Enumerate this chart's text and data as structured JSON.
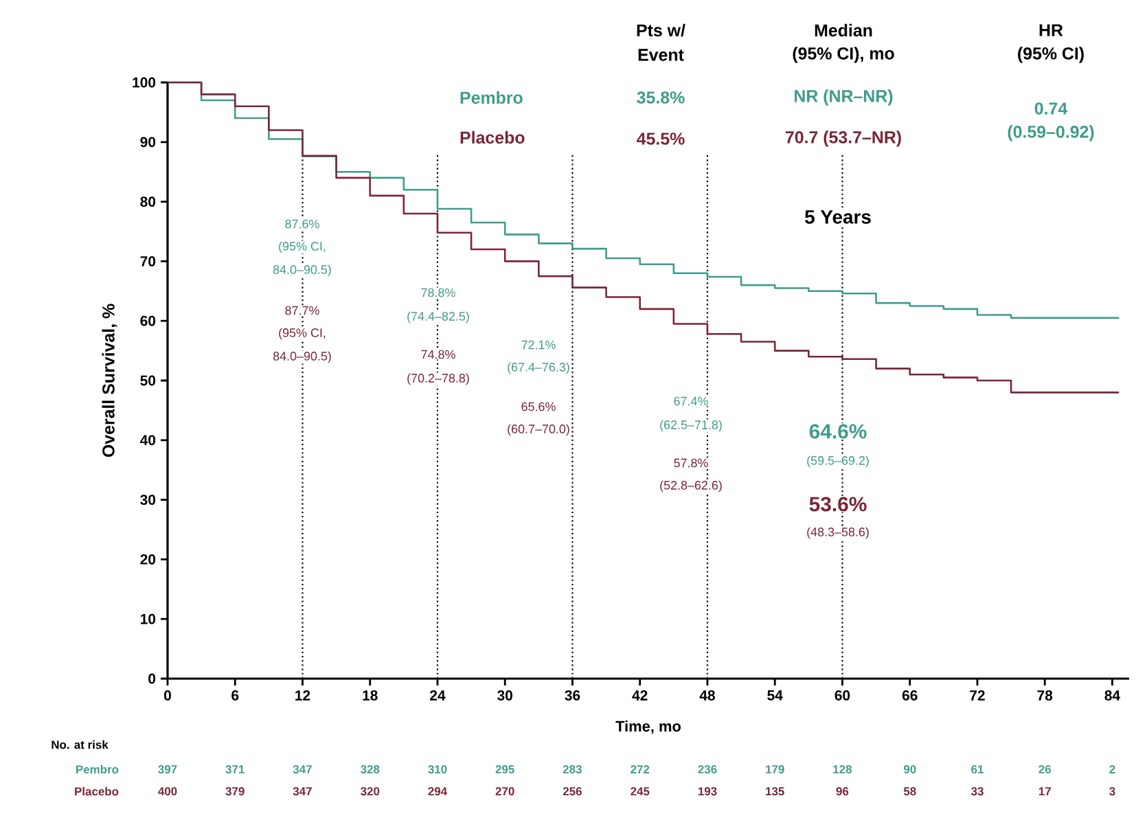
{
  "chart_data": {
    "type": "step",
    "xlabel": "Time, mo",
    "ylabel": "Overall Survival, %",
    "x": [
      0,
      3,
      6,
      9,
      12,
      15,
      18,
      21,
      24,
      27,
      30,
      33,
      36,
      39,
      42,
      45,
      48,
      51,
      54,
      57,
      60,
      63,
      66,
      69,
      72,
      75,
      78,
      81,
      84.6
    ],
    "series": [
      {
        "name": "Pembro",
        "color": "#3f9c8c",
        "values": [
          100,
          97,
          94,
          90.5,
          87.6,
          85,
          84,
          82,
          78.8,
          76.5,
          74.5,
          73,
          72.1,
          70.5,
          69.5,
          68,
          67.4,
          66,
          65.5,
          65,
          64.6,
          63,
          62.5,
          62,
          61,
          60.5,
          60.5,
          60.5,
          60.5
        ]
      },
      {
        "name": "Placebo",
        "color": "#7a2637",
        "values": [
          100,
          98,
          96,
          92,
          87.7,
          84,
          81,
          78,
          74.8,
          72,
          70,
          67.5,
          65.6,
          64,
          62,
          59.5,
          57.8,
          56.5,
          55,
          54,
          53.6,
          52,
          51,
          50.5,
          50,
          48,
          48,
          48,
          48
        ]
      }
    ],
    "xlim": [
      0,
      85.5
    ],
    "ylim": [
      0,
      100
    ],
    "xticks": [
      0,
      6,
      12,
      18,
      24,
      30,
      36,
      42,
      48,
      54,
      60,
      66,
      72,
      78,
      84
    ],
    "yticks": [
      0,
      10,
      20,
      30,
      40,
      50,
      60,
      70,
      80,
      90,
      100
    ],
    "marker": "none",
    "line_style": "solid",
    "legend": false,
    "grid": false,
    "ref_lines": [
      {
        "axis": "x",
        "value": 12,
        "line_style": "dotted"
      },
      {
        "axis": "x",
        "value": 24,
        "line_style": "dotted"
      },
      {
        "axis": "x",
        "value": 36,
        "line_style": "dotted"
      },
      {
        "axis": "x",
        "value": 48,
        "line_style": "dotted"
      },
      {
        "axis": "x",
        "value": 60,
        "line_style": "dotted"
      }
    ],
    "annotations": [
      "Pts w/",
      "Event",
      "Median",
      "(95% CI), mo",
      "HR",
      "(95% CI)",
      "35.8%",
      "NR (NR–NR)",
      "45.5%",
      "70.7 (53.7–NR)",
      "0.74",
      "(0.59–0.92)",
      "No. at risk",
      "5 Years",
      "87.6%",
      "(95% CI,",
      "84.0–90.5)",
      "87.7%",
      "(95% CI,",
      "84.0–90.5)",
      "78.8%",
      "(74.4–82.5)",
      "74.8%",
      "(70.2–78.8)",
      "72.1%",
      "(67.4–76.3)",
      "65.6%",
      "(60.7–70.0)",
      "67.4%",
      "(62.5–71.8)",
      "57.8%",
      "(52.8–62.6)",
      "64.6%",
      "(59.5–69.2)",
      "53.6%",
      "(48.3–58.6)",
      "397",
      "371",
      "347",
      "328",
      "310",
      "295",
      "283",
      "272",
      "236",
      "179",
      "128",
      "90",
      "61",
      "26",
      "2",
      "400",
      "379",
      "347",
      "320",
      "294",
      "270",
      "256",
      "245",
      "193",
      "135",
      "96",
      "58",
      "33",
      "17",
      "3"
    ]
  }
}
